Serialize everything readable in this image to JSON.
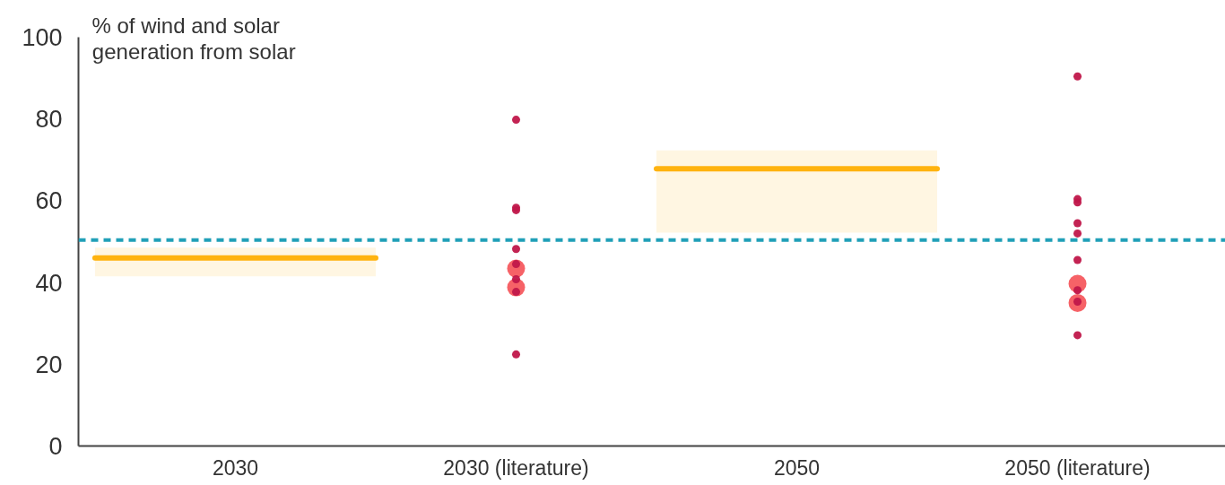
{
  "chart_data": {
    "type": "scatter",
    "ylabel": "% of wind and solar generation from solar",
    "categories": [
      "2030",
      "2030 (literature)",
      "2050",
      "2050 (literature)"
    ],
    "ylim": [
      0,
      100
    ],
    "yticks": [
      0,
      20,
      40,
      60,
      80,
      100
    ],
    "grid": false,
    "series": [
      {
        "type": "box",
        "color": "#ffb30f",
        "boxes": [
          {
            "low": 41.5,
            "q1": 41.5,
            "median": 46.0,
            "q3": 48.5,
            "high": 48.5
          },
          null,
          {
            "low": 52.2,
            "q1": 52.2,
            "median": 67.8,
            "q3": 72.3,
            "high": 72.3
          },
          null
        ]
      },
      {
        "type": "scatter",
        "marker": "circle",
        "color": "#f55a5f",
        "x": [
          "2030 (literature)",
          "2030 (literature)",
          "2050 (literature)",
          "2050 (literature)"
        ],
        "values": [
          43.4,
          38.8,
          39.7,
          35.0
        ]
      },
      {
        "marker": "circle",
        "color": "#c0174a",
        "x": [
          "2030 (literature)",
          "2030 (literature)",
          "2030 (literature)",
          "2030 (literature)",
          "2030 (literature)",
          "2030 (literature)",
          "2030 (literature)",
          "2030 (literature)",
          "2050 (literature)",
          "2050 (literature)",
          "2050 (literature)",
          "2050 (literature)",
          "2050 (literature)",
          "2050 (literature)",
          "2050 (literature)",
          "2050 (literature)",
          "2050 (literature)"
        ],
        "values": [
          79.8,
          58.3,
          57.7,
          48.2,
          44.5,
          40.8,
          37.7,
          22.4,
          90.4,
          60.4,
          59.6,
          54.5,
          52.0,
          45.5,
          38.1,
          35.3,
          27.1
        ]
      }
    ],
    "ref_lines": [
      {
        "axis": "y",
        "value": 50.4,
        "color": "#21a0b8",
        "line_style": "dashed"
      }
    ]
  }
}
